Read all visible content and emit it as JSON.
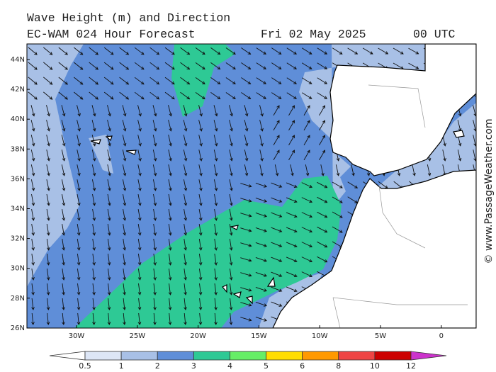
{
  "header": {
    "title": "Wave Height (m) and Direction",
    "model": "EC-WAM 024 Hour Forecast",
    "date": "Fri 02 May 2025",
    "time": "00 UTC"
  },
  "map": {
    "lat_labels": [
      "44N",
      "42N",
      "40N",
      "38N",
      "36N",
      "34N",
      "32N",
      "30N",
      "28N",
      "26N"
    ],
    "lon_labels": [
      "30W",
      "25W",
      "20W",
      "15W",
      "10W",
      "5W",
      "0"
    ]
  },
  "colorbar": {
    "labels": [
      "0.5",
      "1",
      "2",
      "3",
      "4",
      "5",
      "6",
      "8",
      "10",
      "12"
    ],
    "colors": [
      "#ffffff",
      "#dde6f6",
      "#a8c0e6",
      "#5f8ed8",
      "#2ec995",
      "#66ee66",
      "#ffdd00",
      "#ff9900",
      "#ee4444",
      "#cc0000",
      "#cc33cc"
    ]
  },
  "credit": "© www.PassageWeather.com"
}
